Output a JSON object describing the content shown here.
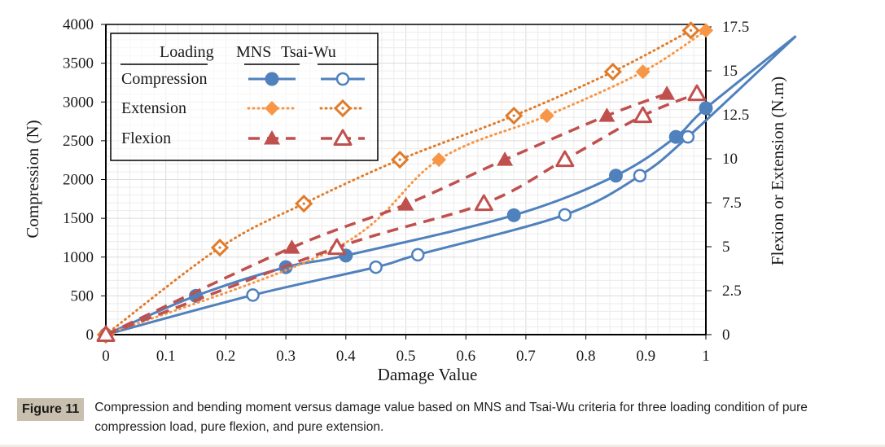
{
  "figure": {
    "badge": "Figure 11",
    "caption": "Compression and bending moment versus damage value based on MNS and Tsai-Wu criteria for three loading condition of pure compression load, pure flexion, and pure extension."
  },
  "colors": {
    "compression": "#4f81bd",
    "extension": "#f79646",
    "extension_open": "#e07b2a",
    "flexion": "#c0504d"
  },
  "chart_data": {
    "type": "line",
    "title": "",
    "xlabel": "Damage Value",
    "ylabel": "Compression (N)",
    "y2label": "Flexion or Extension (N.m)",
    "xlim": [
      0,
      1
    ],
    "ylim": [
      0,
      4000
    ],
    "y2lim": [
      0,
      17.5
    ],
    "xticks": [
      "0",
      "0.1",
      "0.2",
      "0.3",
      "0.4",
      "0.5",
      "0.6",
      "0.7",
      "0.8",
      "0.9",
      "1"
    ],
    "yticks": [
      "0",
      "500",
      "1000",
      "1500",
      "2000",
      "2500",
      "3000",
      "3500",
      "4000"
    ],
    "y2ticks": [
      "0",
      "2.5",
      "5",
      "7.5",
      "10",
      "12.5",
      "15",
      "17.5"
    ],
    "grid": true,
    "legend": {
      "placement": "top-left",
      "header": [
        "Loading",
        "MNS",
        "Tsai-Wu"
      ],
      "rows": [
        "Compression",
        "Extension",
        "Flexion"
      ]
    },
    "series": [
      {
        "name": "Compression MNS",
        "loading": "Compression",
        "criterion": "MNS",
        "axis": "left",
        "marker": "circle-filled",
        "line": "solid",
        "x": [
          0,
          0.15,
          0.3,
          0.4,
          0.68,
          0.85,
          0.95,
          1.0
        ],
        "y": [
          0,
          500,
          870,
          1020,
          1540,
          2050,
          2550,
          2920
        ],
        "trend_end": [
          1.15,
          3850
        ]
      },
      {
        "name": "Compression Tsai-Wu",
        "loading": "Compression",
        "criterion": "Tsai-Wu",
        "axis": "left",
        "marker": "circle-open",
        "line": "solid",
        "x": [
          0,
          0.245,
          0.45,
          0.52,
          0.765,
          0.89,
          0.97
        ],
        "y": [
          0,
          510,
          870,
          1030,
          1545,
          2050,
          2550
        ],
        "trend_end": [
          1.15,
          3850
        ]
      },
      {
        "name": "Extension MNS",
        "loading": "Extension",
        "criterion": "MNS",
        "axis": "right",
        "marker": "diamond-filled",
        "line": "dotted",
        "x": [
          0,
          0.385,
          0.555,
          0.735,
          0.895,
          1.0
        ],
        "y": [
          0,
          4.95,
          9.95,
          12.45,
          14.95,
          17.3
        ]
      },
      {
        "name": "Extension Tsai-Wu",
        "loading": "Extension",
        "criterion": "Tsai-Wu",
        "axis": "right",
        "marker": "diamond-open",
        "line": "dotted",
        "x": [
          0,
          0.19,
          0.33,
          0.49,
          0.68,
          0.845,
          0.975
        ],
        "y": [
          0,
          4.95,
          7.45,
          9.95,
          12.45,
          14.95,
          17.3
        ]
      },
      {
        "name": "Flexion MNS",
        "loading": "Flexion",
        "criterion": "MNS",
        "axis": "right",
        "marker": "triangle-filled",
        "line": "dashed",
        "x": [
          0,
          0.31,
          0.5,
          0.665,
          0.835,
          0.935
        ],
        "y": [
          0,
          4.95,
          7.4,
          9.95,
          12.45,
          13.7
        ]
      },
      {
        "name": "Flexion Tsai-Wu",
        "loading": "Flexion",
        "criterion": "Tsai-Wu",
        "axis": "right",
        "marker": "triangle-open",
        "line": "dashed",
        "x": [
          0,
          0.385,
          0.63,
          0.765,
          0.895,
          0.985
        ],
        "y": [
          0,
          4.95,
          7.45,
          9.95,
          12.45,
          13.7
        ]
      }
    ]
  }
}
